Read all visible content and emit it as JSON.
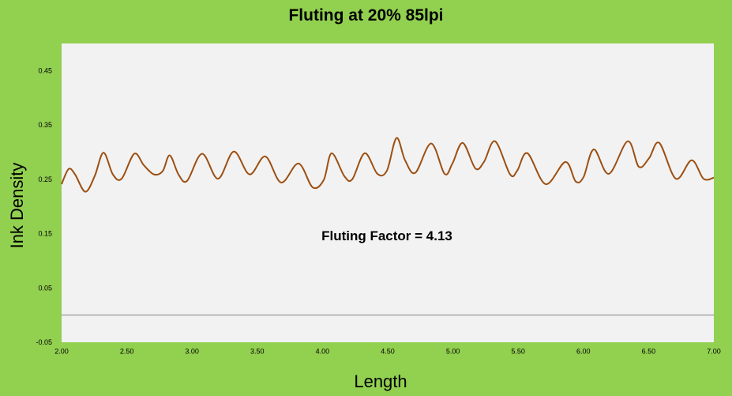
{
  "chart_data": {
    "type": "line",
    "title": "Fluting at 20% 85lpi",
    "xlabel": "Length",
    "ylabel": "Ink Density",
    "annotation": "Fluting Factor = 4.13",
    "xlim": [
      2.0,
      7.0
    ],
    "ylim": [
      -0.05,
      0.5
    ],
    "xticks": [
      "2.00",
      "2.50",
      "3.00",
      "3.50",
      "4.00",
      "4.50",
      "5.00",
      "5.50",
      "6.00",
      "6.50",
      "7.00"
    ],
    "yticks": [
      "-0.05",
      "0.05",
      "0.15",
      "0.25",
      "0.35",
      "0.45"
    ],
    "grid": false,
    "legend": "none",
    "colors": {
      "background": "#92d050",
      "plot_area": "#f2f2f2",
      "line": "#9c4f12"
    },
    "series": [
      {
        "x": [
          2.0,
          2.054,
          2.103,
          2.182,
          2.254,
          2.321,
          2.393,
          2.46,
          2.557,
          2.63,
          2.708,
          2.775,
          2.829,
          2.896,
          2.962,
          3.077,
          3.199,
          3.32,
          3.441,
          3.562,
          3.683,
          3.816,
          3.925,
          4.01,
          4.07,
          4.167,
          4.228,
          4.324,
          4.421,
          4.494,
          4.567,
          4.633,
          4.712,
          4.833,
          4.936,
          4.996,
          5.075,
          5.172,
          5.238,
          5.323,
          5.438,
          5.493,
          5.571,
          5.711,
          5.862,
          5.941,
          6.001,
          6.08,
          6.195,
          6.34,
          6.425,
          6.504,
          6.582,
          6.709,
          6.83,
          6.921,
          7.0
        ],
        "y": [
          0.241,
          0.269,
          0.259,
          0.227,
          0.256,
          0.299,
          0.259,
          0.251,
          0.297,
          0.276,
          0.259,
          0.265,
          0.294,
          0.259,
          0.247,
          0.297,
          0.251,
          0.301,
          0.259,
          0.292,
          0.244,
          0.279,
          0.235,
          0.249,
          0.298,
          0.256,
          0.25,
          0.298,
          0.26,
          0.266,
          0.326,
          0.285,
          0.262,
          0.316,
          0.26,
          0.279,
          0.317,
          0.27,
          0.282,
          0.32,
          0.259,
          0.266,
          0.298,
          0.241,
          0.282,
          0.246,
          0.254,
          0.305,
          0.26,
          0.32,
          0.273,
          0.289,
          0.317,
          0.251,
          0.285,
          0.251,
          0.253
        ]
      }
    ]
  }
}
